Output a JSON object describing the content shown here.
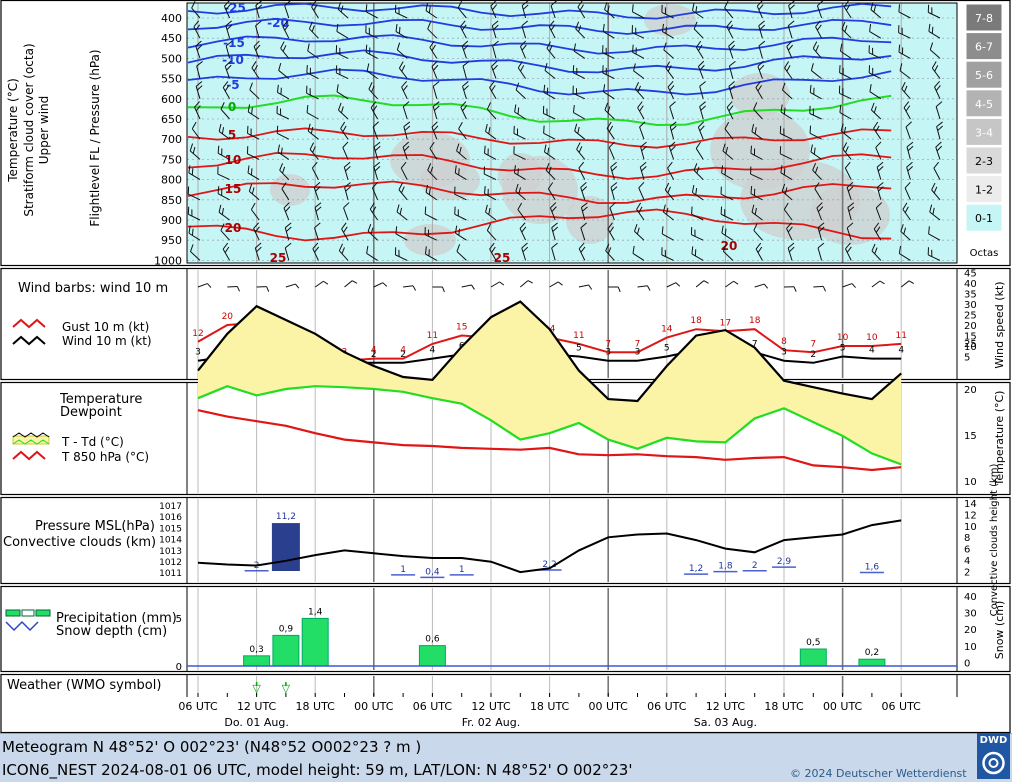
{
  "colors": {
    "sky": "#c6f5f5",
    "freezing": "#22dd22",
    "cold": "#1f3de0",
    "warm": "#e01515",
    "band": "#fbf3a6",
    "precip": "#22dd66",
    "cloud_bar": "#2b3f8f"
  },
  "time_axis": {
    "ticks": [
      "06 UTC",
      "12 UTC",
      "18 UTC",
      "00 UTC",
      "06 UTC",
      "12 UTC",
      "18 UTC",
      "00 UTC",
      "06 UTC",
      "12 UTC",
      "18 UTC",
      "00 UTC",
      "06 UTC"
    ],
    "days": [
      "Do. 01 Aug.",
      "Fr. 02 Aug.",
      "Sa. 03 Aug."
    ]
  },
  "upper": {
    "ylabels_left": [
      "Temperature (°C)",
      "Stratiform cloud cover (octa)",
      "Upper wind"
    ],
    "ylabel_right": "Flightlevel FL / Pressure (hPa)",
    "pressure_levels": [
      "400",
      "450",
      "500",
      "550",
      "600",
      "650",
      "700",
      "750",
      "800",
      "850",
      "900",
      "950",
      "1000"
    ],
    "octa_scale": [
      "7-8",
      "6-7",
      "5-6",
      "4-5",
      "3-4",
      "2-3",
      "1-2",
      "0-1"
    ],
    "octa_label": "Octas",
    "isotherm_labels": [
      "-25",
      "-20",
      "-15",
      "-10",
      "-5",
      "0",
      "5",
      "10",
      "15",
      "20",
      "25",
      "25",
      "20"
    ]
  },
  "wind": {
    "title": "Wind barbs: wind 10 m",
    "legend": [
      "Gust 10 m (kt)",
      "Wind 10 m (kt)"
    ],
    "ylabel": "Wind speed (kt)",
    "yticks": [
      "45",
      "40",
      "35",
      "30",
      "25",
      "20",
      "15",
      "10",
      "5"
    ]
  },
  "temp": {
    "legend_title": [
      "Temperature",
      "Dewpoint"
    ],
    "legend": [
      "T - Td (°C)",
      "T 850 hPa (°C)"
    ],
    "ylabel": "Temperature (°C)",
    "yticks": [
      "25",
      "20",
      "15",
      "10"
    ]
  },
  "pressure": {
    "legend": [
      "Pressure MSL(hPa)",
      "Convective clouds (km)"
    ],
    "yticks_left": [
      "1017",
      "1016",
      "1015",
      "1014",
      "1013",
      "1012",
      "1011"
    ],
    "yticks_right": [
      "14",
      "12",
      "10",
      "8",
      "6",
      "4",
      "2"
    ],
    "ylabel_right": "Convective clouds height (km)"
  },
  "precip": {
    "legend": [
      "Precipitation (mm)",
      "Snow depth (cm)"
    ],
    "yticks_left": [
      "5",
      "0"
    ],
    "yticks_right": [
      "40",
      "30",
      "20",
      "10",
      "0"
    ],
    "ylabel_right": "Snow (cm)"
  },
  "weather": {
    "label": "Weather (WMO symbol)"
  },
  "footer": {
    "line1": "Meteogram N 48°52' O 002°23' (N48°52 O002°23  ? m )",
    "line2": "ICON6_NEST 2024-08-01  06 UTC, model height: 59 m,  LAT/LON: N 48°52' O 002°23'",
    "copyright": "© 2024 Deutscher Wetterdienst",
    "logo": "DWD"
  },
  "chart_data": [
    {
      "type": "line",
      "title": "Wind 10 m",
      "x": [
        "01 06",
        "01 09",
        "01 12",
        "01 15",
        "01 18",
        "01 21",
        "02 00",
        "02 03",
        "02 06",
        "02 09",
        "02 12",
        "02 15",
        "02 18",
        "02 21",
        "03 00",
        "03 03",
        "03 06",
        "03 09",
        "03 12",
        "03 15",
        "03 18",
        "03 21",
        "04 00",
        "04 03",
        "04 06"
      ],
      "series": [
        {
          "name": "Gust 10 m (kt)",
          "values": [
            12,
            20,
            21,
            11,
            4,
            3,
            4,
            4,
            11,
            15,
            14,
            17,
            14,
            11,
            7,
            7,
            14,
            18,
            17,
            18,
            8,
            7,
            10,
            10,
            11
          ]
        },
        {
          "name": "Wind 10 m (kt)",
          "values": [
            3,
            5,
            7,
            6,
            3,
            2,
            2,
            2,
            4,
            6,
            6,
            7,
            6,
            5,
            3,
            3,
            5,
            8,
            7,
            7,
            3,
            2,
            5,
            4,
            4
          ]
        }
      ],
      "ylim": [
        0,
        45
      ]
    },
    {
      "type": "line",
      "title": "Temperature",
      "x": [
        "01 06",
        "01 09",
        "01 12",
        "01 15",
        "01 18",
        "01 21",
        "02 00",
        "02 03",
        "02 06",
        "02 09",
        "02 12",
        "02 15",
        "02 18",
        "02 21",
        "03 00",
        "03 03",
        "03 06",
        "03 09",
        "03 12",
        "03 15",
        "03 18",
        "03 21",
        "04 00",
        "04 03",
        "04 06"
      ],
      "series": [
        {
          "name": "Temperature",
          "values": [
            22,
            26,
            29,
            27.5,
            26,
            24,
            22.5,
            21.3,
            21,
            24.6,
            27.8,
            29.5,
            26.5,
            22,
            18.9,
            18.7,
            22.5,
            25.8,
            26.4,
            24.5,
            20.9,
            20.2,
            19.5,
            18.9,
            21.7
          ]
        },
        {
          "name": "Dewpoint",
          "values": [
            19,
            20.3,
            19.3,
            20,
            20.3,
            20.2,
            20,
            19.7,
            19,
            18.4,
            16.6,
            14.5,
            15.2,
            16.3,
            14.5,
            13.5,
            14.7,
            14.3,
            14.2,
            16.8,
            17.9,
            16.4,
            14.9,
            13,
            11.8
          ]
        },
        {
          "name": "T 850 hPa (°C)",
          "values": [
            17.7,
            17,
            16.5,
            16,
            15.2,
            14.5,
            14.2,
            13.9,
            13.8,
            13.6,
            13.5,
            13.4,
            13.6,
            12.9,
            12.8,
            12.9,
            12.7,
            12.6,
            12.3,
            12.5,
            12.6,
            11.7,
            11.5,
            11.2,
            11.5
          ]
        }
      ],
      "ylim": [
        8,
        30
      ]
    },
    {
      "type": "line",
      "title": "Pressure MSL",
      "x": [
        "01 06",
        "01 09",
        "01 12",
        "01 15",
        "01 18",
        "01 21",
        "02 00",
        "02 03",
        "02 06",
        "02 09",
        "02 12",
        "02 15",
        "02 18",
        "02 21",
        "03 00",
        "03 03",
        "03 06",
        "03 09",
        "03 12",
        "03 15",
        "03 18",
        "03 21",
        "04 00",
        "04 03",
        "04 06"
      ],
      "series": [
        {
          "name": "Pressure MSL (hPa)",
          "values": [
            1012.1,
            1011.9,
            1011.8,
            1012.3,
            1012.9,
            1013.4,
            1013.1,
            1012.8,
            1012.6,
            1012.6,
            1012.2,
            1011.1,
            1011.5,
            1013.4,
            1014.8,
            1015.1,
            1015.2,
            1014.5,
            1013.6,
            1013.2,
            1014.5,
            1014.8,
            1015.1,
            1016.1,
            1016.6
          ]
        }
      ],
      "ylim": [
        1010.5,
        1017.5
      ]
    },
    {
      "type": "bar",
      "title": "Convective clouds (km)",
      "labels": [
        "2",
        "11,2",
        "1",
        "0,4",
        "1",
        "2,2",
        "1,2",
        "1,8",
        "2",
        "2,9",
        "1,6"
      ],
      "values": [
        2,
        11.2,
        1,
        0.4,
        1,
        2.2,
        1.2,
        1.8,
        2,
        2.9,
        1.6
      ]
    },
    {
      "type": "bar",
      "title": "Precipitation (mm)",
      "labels": [
        "0,3",
        "0,9",
        "1,4",
        "0,6",
        "0,5",
        "0,2"
      ],
      "values": [
        0.3,
        0.9,
        1.4,
        0.6,
        0.5,
        0.2
      ]
    }
  ]
}
